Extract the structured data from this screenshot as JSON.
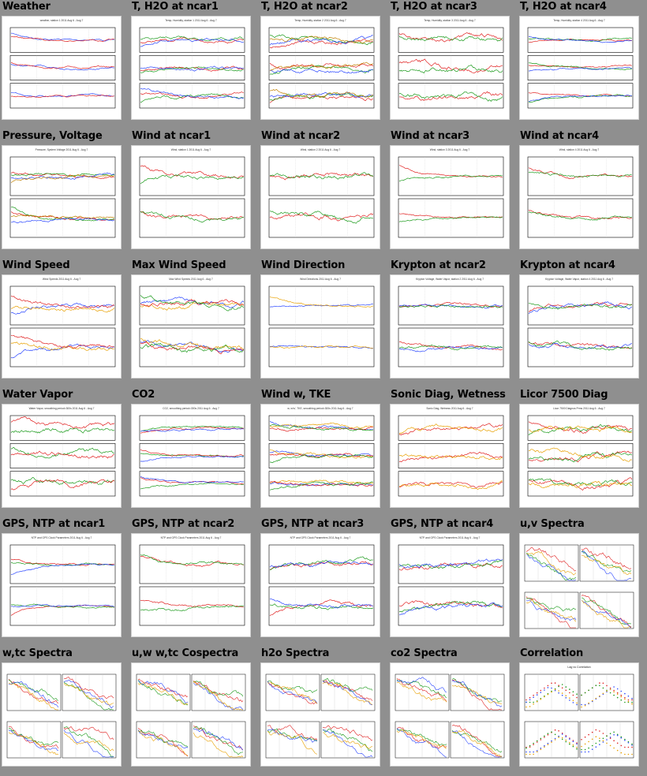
{
  "plots": [
    {
      "title": "Weather",
      "kind": "ts",
      "panels": 3,
      "caption": "weather, station 1 2011 Aug 6 - Aug 7",
      "colors": [
        "#2a46ff",
        "#e02020",
        "#1a9a1a",
        "#c000c0"
      ]
    },
    {
      "title": "T, H2O at ncar1",
      "kind": "ts",
      "panels": 3,
      "caption": "Temp, Humidity, station 1 2011 Aug 6 - Aug 7",
      "colors": [
        "#e02020",
        "#1a9a1a",
        "#2a46ff",
        "#c08000"
      ]
    },
    {
      "title": "T, H2O at ncar2",
      "kind": "ts",
      "panels": 3,
      "caption": "Temp, Humidity, station 2 2011 Aug 6 - Aug 7",
      "colors": [
        "#e02020",
        "#1a9a1a",
        "#2a46ff",
        "#c08000"
      ]
    },
    {
      "title": "T, H2O at ncar3",
      "kind": "ts",
      "panels": 3,
      "caption": "Temp, Humidity, station 3 2011 Aug 6 - Aug 7",
      "colors": [
        "#e02020",
        "#1a9a1a",
        "#2a46ff",
        "#c08000"
      ]
    },
    {
      "title": "T, H2O at ncar4",
      "kind": "ts",
      "panels": 3,
      "caption": "Temp, Humidity, station 4 2011 Aug 6 - Aug 7",
      "colors": [
        "#e02020",
        "#1a9a1a",
        "#2a46ff",
        "#c08000"
      ]
    },
    {
      "title": "Pressure, Voltage",
      "kind": "ts",
      "panels": 2,
      "caption": "Pressure, System Voltage 2011 Aug 6 - Aug 7",
      "colors": [
        "#e02020",
        "#1a9a1a",
        "#2a46ff",
        "#c08000"
      ]
    },
    {
      "title": "Wind at ncar1",
      "kind": "ts",
      "panels": 2,
      "caption": "Wind, station 1 2011 Aug 6 - Aug 7",
      "colors": [
        "#e02020",
        "#1a9a1a"
      ]
    },
    {
      "title": "Wind at ncar2",
      "kind": "ts",
      "panels": 2,
      "caption": "Wind, station 2 2011 Aug 6 - Aug 7",
      "colors": [
        "#e02020",
        "#1a9a1a"
      ]
    },
    {
      "title": "Wind at ncar3",
      "kind": "ts",
      "panels": 2,
      "caption": "Wind, station 3 2011 Aug 6 - Aug 7",
      "colors": [
        "#e02020",
        "#1a9a1a"
      ]
    },
    {
      "title": "Wind at ncar4",
      "kind": "ts",
      "panels": 2,
      "caption": "Wind, station 4 2011 Aug 6 - Aug 7",
      "colors": [
        "#e02020",
        "#1a9a1a"
      ]
    },
    {
      "title": "Wind Speed",
      "kind": "ts",
      "panels": 2,
      "caption": "Wind Speeds 2011 Aug 6 - Aug 7",
      "colors": [
        "#2a46ff",
        "#e8a000",
        "#e02020",
        "#1a9a1a"
      ]
    },
    {
      "title": "Max Wind Speed",
      "kind": "ts",
      "panels": 2,
      "caption": "Max Wind Speeds 2011 Aug 6 - Aug 7",
      "colors": [
        "#2a46ff",
        "#e8a000",
        "#e02020",
        "#1a9a1a"
      ]
    },
    {
      "title": "Wind Direction",
      "kind": "ts",
      "panels": 2,
      "caption": "Wind Directions 2011 Aug 6 - Aug 7",
      "colors": [
        "#2a46ff",
        "#e8a000",
        "#e02020",
        "#1a9a1a"
      ]
    },
    {
      "title": "Krypton at ncar2",
      "kind": "ts",
      "panels": 2,
      "caption": "Krypton Voltage, Water Vapor, station 2 2011 Aug 6 - Aug 7",
      "colors": [
        "#e02020",
        "#2a46ff",
        "#1a9a1a"
      ]
    },
    {
      "title": "Krypton at ncar4",
      "kind": "ts",
      "panels": 2,
      "caption": "Krypton Voltage, Water Vapor, station 4 2011 Aug 6 - Aug 7",
      "colors": [
        "#e02020",
        "#2a46ff",
        "#1a9a1a"
      ]
    },
    {
      "title": "Water Vapor",
      "kind": "ts",
      "panels": 3,
      "caption": "Water Vapor, smoothing period=300s 2011 Aug 6 - Aug 7",
      "colors": [
        "#1a9a1a",
        "#e02020",
        "#2a46ff",
        "#e8a000"
      ]
    },
    {
      "title": "CO2",
      "kind": "ts",
      "panels": 3,
      "caption": "CO2, smoothing period=300s 2011 Aug 6 - Aug 7",
      "colors": [
        "#1a9a1a",
        "#e02020",
        "#2a46ff",
        "#e8a000"
      ]
    },
    {
      "title": "Wind w, TKE",
      "kind": "ts",
      "panels": 3,
      "caption": "w, w'w', TKE, smoothing period=300s 2011 Aug 6 - Aug 7",
      "colors": [
        "#2a46ff",
        "#e8a000",
        "#e02020",
        "#1a9a1a"
      ]
    },
    {
      "title": "Sonic Diag, Wetness",
      "kind": "ts",
      "panels": 3,
      "caption": "Sonic Diag, Wetness 2011 Aug 6 - Aug 7",
      "colors": [
        "#e02020",
        "#e8a000",
        "#2a46ff"
      ]
    },
    {
      "title": "Licor 7500 Diag",
      "kind": "ts",
      "panels": 3,
      "caption": "Licor 7500 Diagnos Prms 2011 Aug 6 - Aug 7",
      "colors": [
        "#e02020",
        "#1a9a1a",
        "#e8a000"
      ]
    },
    {
      "title": "GPS, NTP at ncar1",
      "kind": "ts",
      "panels": 2,
      "caption": "NTP and GPS Clock Parameters 2011 Aug 6 - Aug 7",
      "colors": [
        "#e02020",
        "#1a9a1a",
        "#2a46ff"
      ]
    },
    {
      "title": "GPS, NTP at ncar2",
      "kind": "ts",
      "panels": 2,
      "caption": "NTP and GPS Clock Parameters 2011 Aug 6 - Aug 7",
      "colors": [
        "#e02020",
        "#1a9a1a",
        "#2a46ff"
      ]
    },
    {
      "title": "GPS, NTP at ncar3",
      "kind": "ts",
      "panels": 2,
      "caption": "NTP and GPS Clock Parameters 2011 Aug 6 - Aug 7",
      "colors": [
        "#e02020",
        "#1a9a1a",
        "#2a46ff"
      ]
    },
    {
      "title": "GPS, NTP at ncar4",
      "kind": "ts",
      "panels": 2,
      "caption": "NTP and GPS Clock Parameters 2011 Aug 6 - Aug 7",
      "colors": [
        "#e02020",
        "#1a9a1a",
        "#2a46ff"
      ]
    },
    {
      "title": "u,v Spectra",
      "kind": "spec",
      "panels": 4,
      "caption": "",
      "colors": [
        "#e02020",
        "#1a9a1a",
        "#2a46ff",
        "#e8a000"
      ]
    },
    {
      "title": "w,tc Spectra",
      "kind": "spec",
      "panels": 4,
      "caption": "",
      "colors": [
        "#e02020",
        "#1a9a1a",
        "#2a46ff",
        "#e8a000"
      ]
    },
    {
      "title": "u,w w,tc Cospectra",
      "kind": "spec",
      "panels": 4,
      "caption": "",
      "colors": [
        "#e02020",
        "#1a9a1a",
        "#2a46ff",
        "#e8a000"
      ]
    },
    {
      "title": "h2o Spectra",
      "kind": "spec",
      "panels": 4,
      "caption": "",
      "colors": [
        "#e02020",
        "#1a9a1a",
        "#2a46ff",
        "#e8a000"
      ]
    },
    {
      "title": "co2 Spectra",
      "kind": "spec",
      "panels": 4,
      "caption": "",
      "colors": [
        "#e02020",
        "#1a9a1a",
        "#2a46ff",
        "#e8a000"
      ]
    },
    {
      "title": "Correlation",
      "kind": "corr",
      "panels": 4,
      "caption": "Lag vs Correlation",
      "colors": [
        "#e02020",
        "#1a9a1a",
        "#2a46ff",
        "#e8a000"
      ]
    }
  ]
}
